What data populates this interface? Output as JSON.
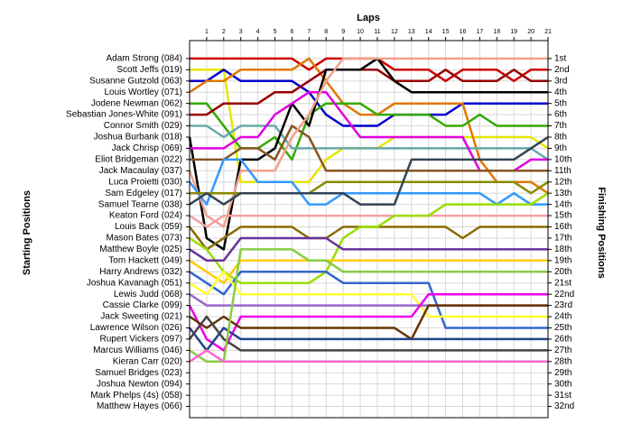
{
  "chart_data": {
    "type": "lap",
    "title": "Laps",
    "y_label": "Starting Positions",
    "y2_label": "Finishing Positions",
    "x": [
      0,
      1,
      2,
      3,
      4,
      5,
      6,
      7,
      8,
      9,
      10,
      11,
      12,
      13,
      14,
      15,
      16,
      17,
      18,
      19,
      20,
      21
    ],
    "xlim": [
      0,
      21
    ],
    "xticks": [
      1,
      2,
      3,
      4,
      5,
      6,
      7,
      8,
      9,
      10,
      11,
      12,
      13,
      14,
      15,
      16,
      17,
      18,
      19,
      20,
      21
    ],
    "ylim": [
      33,
      -0.6
    ],
    "yticks": [
      {
        "value": 1,
        "label": "Adam Strong (084)"
      },
      {
        "value": 2,
        "label": "Scott Jeffs (019)"
      },
      {
        "value": 3,
        "label": "Susanne Gutzold (063)"
      },
      {
        "value": 4,
        "label": "Louis Wortley (071)"
      },
      {
        "value": 5,
        "label": "Jodene Newman (062)"
      },
      {
        "value": 6,
        "label": "Sebastian Jones-White (091)"
      },
      {
        "value": 7,
        "label": "Connor Smith (029)"
      },
      {
        "value": 8,
        "label": "Joshua Burbank (018)"
      },
      {
        "value": 9,
        "label": "Jack Chrisp (069)"
      },
      {
        "value": 10,
        "label": "Eliot Bridgeman (022)"
      },
      {
        "value": 11,
        "label": "Jack Macaulay (037)"
      },
      {
        "value": 12,
        "label": "Luca Proietti (030)"
      },
      {
        "value": 13,
        "label": "Sam Edgeley (017)"
      },
      {
        "value": 14,
        "label": "Samuel Tearne (038)"
      },
      {
        "value": 15,
        "label": "Keaton Ford (024)"
      },
      {
        "value": 16,
        "label": "Louis Back (059)"
      },
      {
        "value": 17,
        "label": "Mason Bates (073)"
      },
      {
        "value": 18,
        "label": "Matthew Boyle (025)"
      },
      {
        "value": 19,
        "label": "Tom Hackett (049)"
      },
      {
        "value": 20,
        "label": "Harry Andrews (032)"
      },
      {
        "value": 21,
        "label": "Joshua Kavanagh (051)"
      },
      {
        "value": 22,
        "label": "Lewis Judd (068)"
      },
      {
        "value": 23,
        "label": "Cassie Clarke (099)"
      },
      {
        "value": 24,
        "label": "Jack Sweeting (021)"
      },
      {
        "value": 25,
        "label": "Lawrence Wilson (026)"
      },
      {
        "value": 26,
        "label": "Rupert Vickers (097)"
      },
      {
        "value": 27,
        "label": "Marcus Williams (046)"
      },
      {
        "value": 28,
        "label": "Kieran Carr (020)"
      },
      {
        "value": 29,
        "label": "Samuel Bridges (023)"
      },
      {
        "value": 30,
        "label": "Joshua Newton (094)"
      },
      {
        "value": 31,
        "label": "Mark Phelps (4s) (058)"
      },
      {
        "value": 32,
        "label": "Matthew Hayes (066)"
      }
    ],
    "y2ticks": [
      {
        "value": 1,
        "label": "1st"
      },
      {
        "value": 2,
        "label": "2nd"
      },
      {
        "value": 3,
        "label": "3rd"
      },
      {
        "value": 4,
        "label": "4th"
      },
      {
        "value": 5,
        "label": "5th"
      },
      {
        "value": 6,
        "label": "6th"
      },
      {
        "value": 7,
        "label": "7th"
      },
      {
        "value": 8,
        "label": "8th"
      },
      {
        "value": 9,
        "label": "9th"
      },
      {
        "value": 10,
        "label": "10th"
      },
      {
        "value": 11,
        "label": "11th"
      },
      {
        "value": 12,
        "label": "12th"
      },
      {
        "value": 13,
        "label": "13th"
      },
      {
        "value": 14,
        "label": "14th"
      },
      {
        "value": 15,
        "label": "15th"
      },
      {
        "value": 16,
        "label": "16th"
      },
      {
        "value": 17,
        "label": "17th"
      },
      {
        "value": 18,
        "label": "18th"
      },
      {
        "value": 19,
        "label": "19th"
      },
      {
        "value": 20,
        "label": "20th"
      },
      {
        "value": 21,
        "label": "21st"
      },
      {
        "value": 22,
        "label": "22nd"
      },
      {
        "value": 23,
        "label": "23rd"
      },
      {
        "value": 24,
        "label": "24th"
      },
      {
        "value": 25,
        "label": "25th"
      },
      {
        "value": 26,
        "label": "26th"
      },
      {
        "value": 27,
        "label": "27th"
      },
      {
        "value": 28,
        "label": "28th"
      },
      {
        "value": 29,
        "label": "29th"
      },
      {
        "value": 30,
        "label": "30th"
      },
      {
        "value": 31,
        "label": "31st"
      },
      {
        "value": 32,
        "label": "32nd"
      }
    ],
    "grid": true,
    "series": [
      {
        "color": "#cc0000",
        "values": [
          1,
          1,
          1,
          1,
          1,
          1,
          1,
          2,
          1,
          1,
          1,
          1,
          2,
          2,
          2,
          3,
          2,
          2,
          2,
          3,
          2,
          2
        ]
      },
      {
        "color": "#e6e600",
        "values": [
          2,
          2,
          2,
          12,
          12,
          12,
          12,
          12,
          10,
          9,
          9,
          9,
          8,
          8,
          8,
          8,
          8,
          8,
          8,
          8,
          8,
          9
        ]
      },
      {
        "color": "#0000cc",
        "values": [
          3,
          3,
          2,
          3,
          3,
          3,
          3,
          4,
          6,
          7,
          7,
          7,
          6,
          6,
          6,
          6,
          5,
          5,
          5,
          5,
          5,
          5
        ]
      },
      {
        "color": "#e07800",
        "values": [
          4,
          3,
          3,
          2,
          2,
          2,
          2,
          1,
          3,
          5,
          6,
          6,
          5,
          5,
          5,
          5,
          5,
          10,
          12,
          12,
          12,
          13
        ]
      },
      {
        "color": "#33aa00",
        "values": [
          5,
          5,
          7,
          9,
          9,
          8,
          10,
          6,
          5,
          5,
          5,
          6,
          6,
          6,
          6,
          7,
          7,
          6,
          7,
          7,
          7,
          7
        ]
      },
      {
        "color": "#990000",
        "values": [
          6,
          6,
          5,
          5,
          5,
          4,
          4,
          3,
          2,
          2,
          2,
          2,
          3,
          3,
          3,
          2,
          3,
          3,
          3,
          2,
          3,
          3
        ]
      },
      {
        "color": "#66aaaa",
        "values": [
          7,
          7,
          8,
          7,
          7,
          7,
          9,
          9,
          9,
          9,
          9,
          9,
          9,
          9,
          9,
          9,
          9,
          9,
          9,
          9,
          9,
          10
        ]
      },
      {
        "color": "#000000",
        "values": [
          8,
          17,
          18,
          10,
          10,
          9,
          5,
          7,
          2,
          2,
          2,
          1,
          3,
          4,
          4,
          4,
          4,
          4,
          4,
          4,
          4,
          4
        ]
      },
      {
        "color": "#e000e0",
        "values": [
          9,
          9,
          9,
          8,
          8,
          6,
          5,
          4,
          4,
          6,
          8,
          8,
          8,
          8,
          8,
          8,
          8,
          11,
          11,
          11,
          10,
          10
        ]
      },
      {
        "color": "#885522",
        "values": [
          10,
          10,
          10,
          9,
          9,
          10,
          7,
          8,
          11,
          11,
          11,
          11,
          11,
          11,
          11,
          11,
          11,
          11,
          11,
          11,
          11,
          11
        ]
      },
      {
        "color": "#f0a08a",
        "values": [
          11,
          15,
          16,
          11,
          11,
          11,
          8,
          6,
          3,
          1,
          1,
          1,
          1,
          1,
          1,
          1,
          1,
          1,
          1,
          1,
          1,
          1
        ]
      },
      {
        "color": "#3399ff",
        "values": [
          12,
          14,
          10,
          10,
          12,
          12,
          12,
          14,
          14,
          13,
          13,
          13,
          13,
          13,
          13,
          13,
          13,
          13,
          14,
          13,
          14,
          14
        ]
      },
      {
        "color": "#8a8a00",
        "values": [
          13,
          13,
          13,
          13,
          13,
          13,
          13,
          13,
          12,
          12,
          12,
          12,
          12,
          12,
          12,
          12,
          12,
          12,
          12,
          12,
          13,
          12
        ]
      },
      {
        "color": "#334455",
        "values": [
          14,
          13,
          14,
          13,
          13,
          13,
          13,
          13,
          13,
          13,
          14,
          14,
          14,
          10,
          10,
          10,
          10,
          10,
          10,
          10,
          9,
          8
        ]
      },
      {
        "color": "#f4a0a0",
        "values": [
          15,
          16,
          15,
          15,
          15,
          15,
          15,
          15,
          15,
          15,
          15,
          15,
          15,
          15,
          15,
          15,
          15,
          15,
          15,
          15,
          15,
          15
        ]
      },
      {
        "color": "#8a6a00",
        "values": [
          16,
          18,
          17,
          16,
          16,
          16,
          16,
          17,
          17,
          16,
          16,
          16,
          16,
          16,
          16,
          16,
          17,
          16,
          16,
          16,
          16,
          16
        ]
      },
      {
        "color": "#99dd00",
        "values": [
          17,
          18,
          20,
          21,
          21,
          21,
          21,
          21,
          20,
          17,
          16,
          16,
          15,
          15,
          15,
          14,
          14,
          14,
          14,
          14,
          14,
          13
        ]
      },
      {
        "color": "#663399",
        "values": [
          18,
          19,
          19,
          17,
          17,
          17,
          17,
          17,
          17,
          18,
          18,
          18,
          18,
          18,
          18,
          18,
          18,
          18,
          18,
          18,
          18,
          18
        ]
      },
      {
        "color": "#ffcc00",
        "values": [
          19,
          20,
          21,
          19,
          19,
          19,
          19,
          19,
          19,
          19,
          19,
          19,
          19,
          19,
          19,
          19,
          19,
          19,
          19,
          19,
          19,
          19
        ]
      },
      {
        "color": "#3366cc",
        "values": [
          20,
          21,
          22,
          20,
          20,
          20,
          20,
          20,
          20,
          21,
          21,
          21,
          21,
          21,
          21,
          25,
          25,
          25,
          25,
          25,
          25,
          25
        ]
      },
      {
        "color": "#ffff33",
        "values": [
          21,
          22,
          20,
          22,
          22,
          22,
          22,
          22,
          22,
          22,
          22,
          22,
          22,
          22,
          24,
          24,
          24,
          24,
          24,
          24,
          24,
          24
        ]
      },
      {
        "color": "#9966cc",
        "values": [
          22,
          23,
          23,
          23,
          23,
          23,
          23,
          23,
          23,
          23,
          23,
          23,
          23,
          23,
          23,
          23,
          23,
          23,
          23,
          23,
          23,
          23
        ]
      },
      {
        "color": "#ee00ee",
        "values": [
          23,
          26,
          27,
          24,
          24,
          24,
          24,
          24,
          24,
          24,
          24,
          24,
          24,
          24,
          22,
          22,
          22,
          22,
          22,
          22,
          22,
          22
        ]
      },
      {
        "color": "#663300",
        "values": [
          24,
          25,
          24,
          25,
          25,
          25,
          25,
          25,
          25,
          25,
          25,
          25,
          25,
          26,
          23,
          23,
          23,
          23,
          23,
          23,
          23,
          23
        ]
      },
      {
        "color": "#224488",
        "values": [
          25,
          27,
          25,
          26,
          26,
          26,
          26,
          26,
          26,
          26,
          26,
          26,
          26,
          26,
          26,
          26,
          26,
          26,
          26,
          26,
          26,
          26
        ]
      },
      {
        "color": "#444444",
        "values": [
          26,
          24,
          26,
          27,
          27,
          27,
          27,
          27,
          27,
          27,
          27,
          27,
          27,
          27,
          27,
          27,
          27,
          27,
          27,
          27,
          27,
          27
        ]
      },
      {
        "color": "#88cc44",
        "values": [
          27,
          28,
          28,
          18,
          18,
          18,
          18,
          19,
          19,
          20,
          20,
          20,
          20,
          20,
          20,
          20,
          20,
          20,
          20,
          20,
          20,
          20
        ]
      },
      {
        "color": "#ff66cc",
        "values": [
          28,
          27,
          28,
          28,
          28,
          28,
          28,
          28,
          28,
          28,
          28,
          28,
          28,
          28,
          28,
          28,
          28,
          28,
          28,
          28,
          28,
          28
        ]
      }
    ]
  }
}
